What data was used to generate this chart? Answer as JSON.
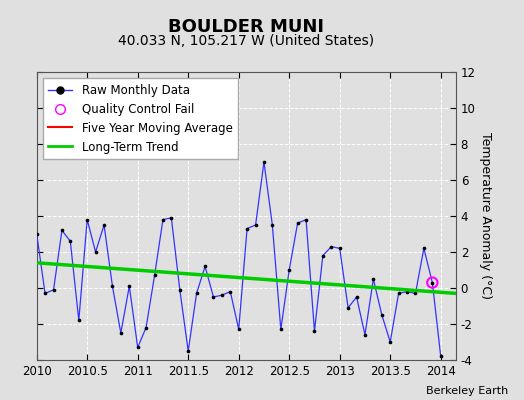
{
  "title": "BOULDER MUNI",
  "subtitle": "40.033 N, 105.217 W (United States)",
  "ylabel": "Temperature Anomaly (°C)",
  "credit": "Berkeley Earth",
  "ylim": [
    -4,
    12
  ],
  "yticks": [
    -4,
    -2,
    0,
    2,
    4,
    6,
    8,
    10,
    12
  ],
  "xlim": [
    2010.0,
    2014.15
  ],
  "xticks": [
    2010,
    2010.5,
    2011,
    2011.5,
    2012,
    2012.5,
    2013,
    2013.5,
    2014
  ],
  "background_color": "#e0e0e0",
  "plot_bg_color": "#e0e0e0",
  "raw_x": [
    2010.0,
    2010.083,
    2010.167,
    2010.25,
    2010.333,
    2010.417,
    2010.5,
    2010.583,
    2010.667,
    2010.75,
    2010.833,
    2010.917,
    2011.0,
    2011.083,
    2011.167,
    2011.25,
    2011.333,
    2011.417,
    2011.5,
    2011.583,
    2011.667,
    2011.75,
    2011.833,
    2011.917,
    2012.0,
    2012.083,
    2012.167,
    2012.25,
    2012.333,
    2012.417,
    2012.5,
    2012.583,
    2012.667,
    2012.75,
    2012.833,
    2012.917,
    2013.0,
    2013.083,
    2013.167,
    2013.25,
    2013.333,
    2013.417,
    2013.5,
    2013.583,
    2013.667,
    2013.75,
    2013.833,
    2013.917,
    2014.0
  ],
  "raw_y": [
    3.0,
    -0.3,
    -0.1,
    3.2,
    2.6,
    -1.8,
    3.8,
    2.0,
    3.5,
    0.1,
    -2.5,
    0.1,
    -3.3,
    -2.2,
    0.7,
    3.8,
    3.9,
    -0.1,
    -3.5,
    -0.3,
    1.2,
    -0.5,
    -0.4,
    -0.2,
    -2.3,
    3.3,
    3.5,
    7.0,
    3.5,
    -2.3,
    1.0,
    3.6,
    3.8,
    -2.4,
    1.8,
    2.3,
    2.2,
    -1.1,
    -0.5,
    -2.6,
    0.5,
    -1.5,
    -3.0,
    -0.3,
    -0.2,
    -0.3,
    2.2,
    0.3,
    -3.8
  ],
  "qc_fail_x": [
    2013.917
  ],
  "qc_fail_y": [
    0.3
  ],
  "trend_x": [
    2010.0,
    2014.15
  ],
  "trend_y": [
    1.4,
    -0.3
  ],
  "raw_color": "#3333ff",
  "raw_marker_color": "#000000",
  "trend_color": "#00cc00",
  "ma_color": "#ff0000",
  "qc_color": "#ff00ff",
  "title_fontsize": 13,
  "subtitle_fontsize": 10,
  "label_fontsize": 9,
  "tick_fontsize": 8.5,
  "legend_fontsize": 8.5,
  "credit_fontsize": 8
}
